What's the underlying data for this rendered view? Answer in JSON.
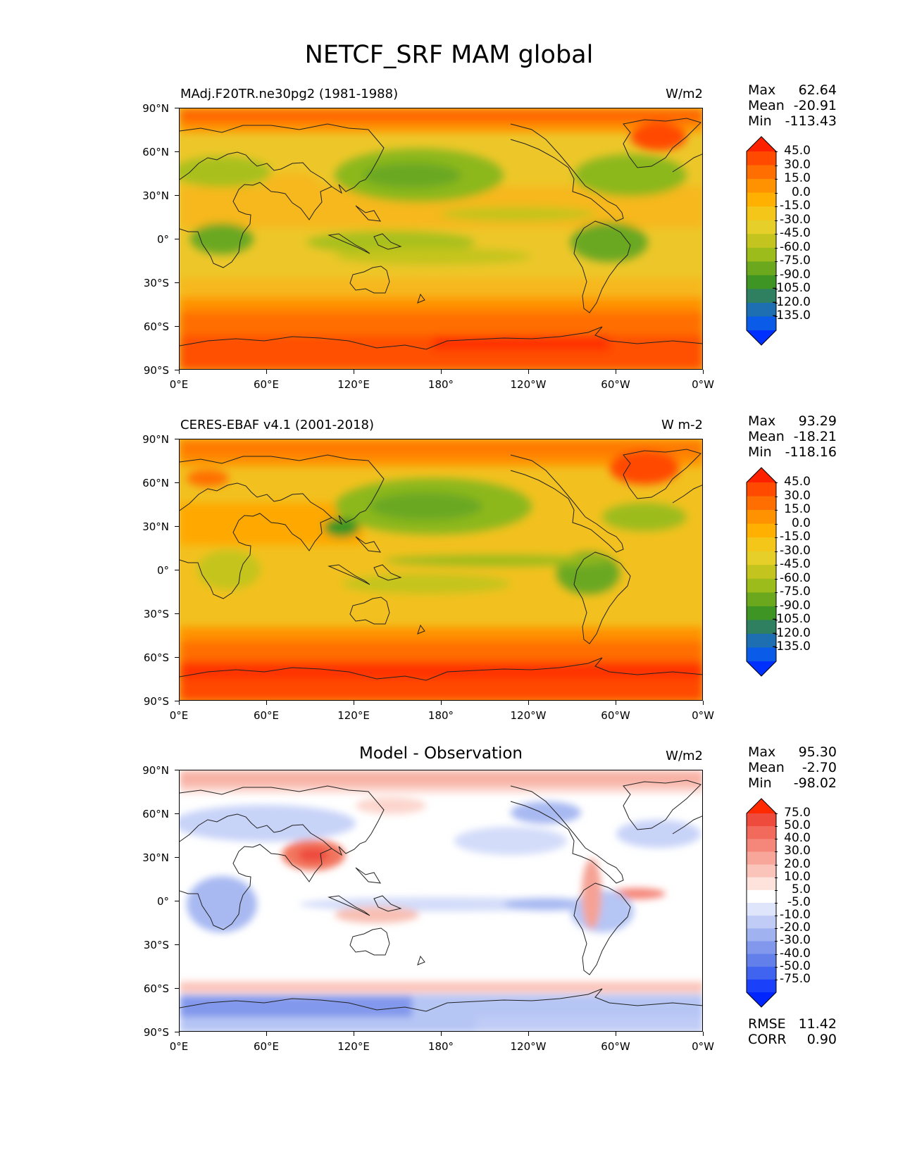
{
  "figure_title": "NETCF_SRF MAM global",
  "x_ticks": [
    "0°E",
    "60°E",
    "120°E",
    "180°",
    "120°W",
    "60°W",
    "0°W"
  ],
  "y_ticks": [
    "90°N",
    "60°N",
    "30°N",
    "0°",
    "30°S",
    "60°S",
    "90°S"
  ],
  "panels": [
    {
      "id": "test",
      "title_left": "MAdj.F20TR.ne30pg2 (1981-1988)",
      "title_center": "",
      "units": "W/m2",
      "stats": [
        {
          "label": "Max",
          "value": "62.64"
        },
        {
          "label": "Mean",
          "value": "-20.91"
        },
        {
          "label": "Min",
          "value": "-113.43"
        }
      ],
      "colorbar": {
        "labels": [
          "45.0",
          "30.0",
          "15.0",
          "0.0",
          "-15.0",
          "-30.0",
          "-45.0",
          "-60.0",
          "-75.0",
          "-90.0",
          "-105.0",
          "-120.0",
          "-135.0"
        ],
        "colors": [
          "#ff2000",
          "#ff4a00",
          "#ff6e00",
          "#ff9200",
          "#ffb000",
          "#f3c619",
          "#e7cf29",
          "#c4c41f",
          "#9cbc1c",
          "#6ca81e",
          "#3e9524",
          "#2f8061",
          "#1d6fb1",
          "#0a5ce8",
          "#0030ff"
        ]
      }
    },
    {
      "id": "ref",
      "title_left": "CERES-EBAF v4.1 (2001-2018)",
      "title_center": "",
      "units": "W m-2",
      "stats": [
        {
          "label": "Max",
          "value": "93.29"
        },
        {
          "label": "Mean",
          "value": "-18.21"
        },
        {
          "label": "Min",
          "value": "-118.16"
        }
      ],
      "colorbar": {
        "labels": [
          "45.0",
          "30.0",
          "15.0",
          "0.0",
          "-15.0",
          "-30.0",
          "-45.0",
          "-60.0",
          "-75.0",
          "-90.0",
          "-105.0",
          "-120.0",
          "-135.0"
        ],
        "colors": [
          "#ff2000",
          "#ff4a00",
          "#ff6e00",
          "#ff9200",
          "#ffb000",
          "#f3c619",
          "#e7cf29",
          "#c4c41f",
          "#9cbc1c",
          "#6ca81e",
          "#3e9524",
          "#2f8061",
          "#1d6fb1",
          "#0a5ce8",
          "#0030ff"
        ]
      }
    },
    {
      "id": "diff",
      "title_left": "",
      "title_center": "Model - Observation",
      "units": "W/m2",
      "stats": [
        {
          "label": "Max",
          "value": "95.30"
        },
        {
          "label": "Mean",
          "value": "-2.70"
        },
        {
          "label": "Min",
          "value": "-98.02"
        }
      ],
      "metrics": [
        {
          "label": "RMSE",
          "value": "11.42"
        },
        {
          "label": "CORR",
          "value": "0.90"
        }
      ],
      "colorbar": {
        "labels": [
          "75.0",
          "50.0",
          "40.0",
          "30.0",
          "20.0",
          "10.0",
          "5.0",
          "-5.0",
          "-10.0",
          "-20.0",
          "-30.0",
          "-40.0",
          "-50.0",
          "-75.0"
        ],
        "colors": [
          "#ff2a00",
          "#ee4b3c",
          "#f26a5c",
          "#f5877a",
          "#f8a699",
          "#fbc4ba",
          "#fde3dc",
          "#ffffff",
          "#dfe5fb",
          "#c0ccf6",
          "#a1b2f1",
          "#8298ec",
          "#6380ea",
          "#4064ef",
          "#1a40fa",
          "#0025ff"
        ]
      }
    }
  ]
}
